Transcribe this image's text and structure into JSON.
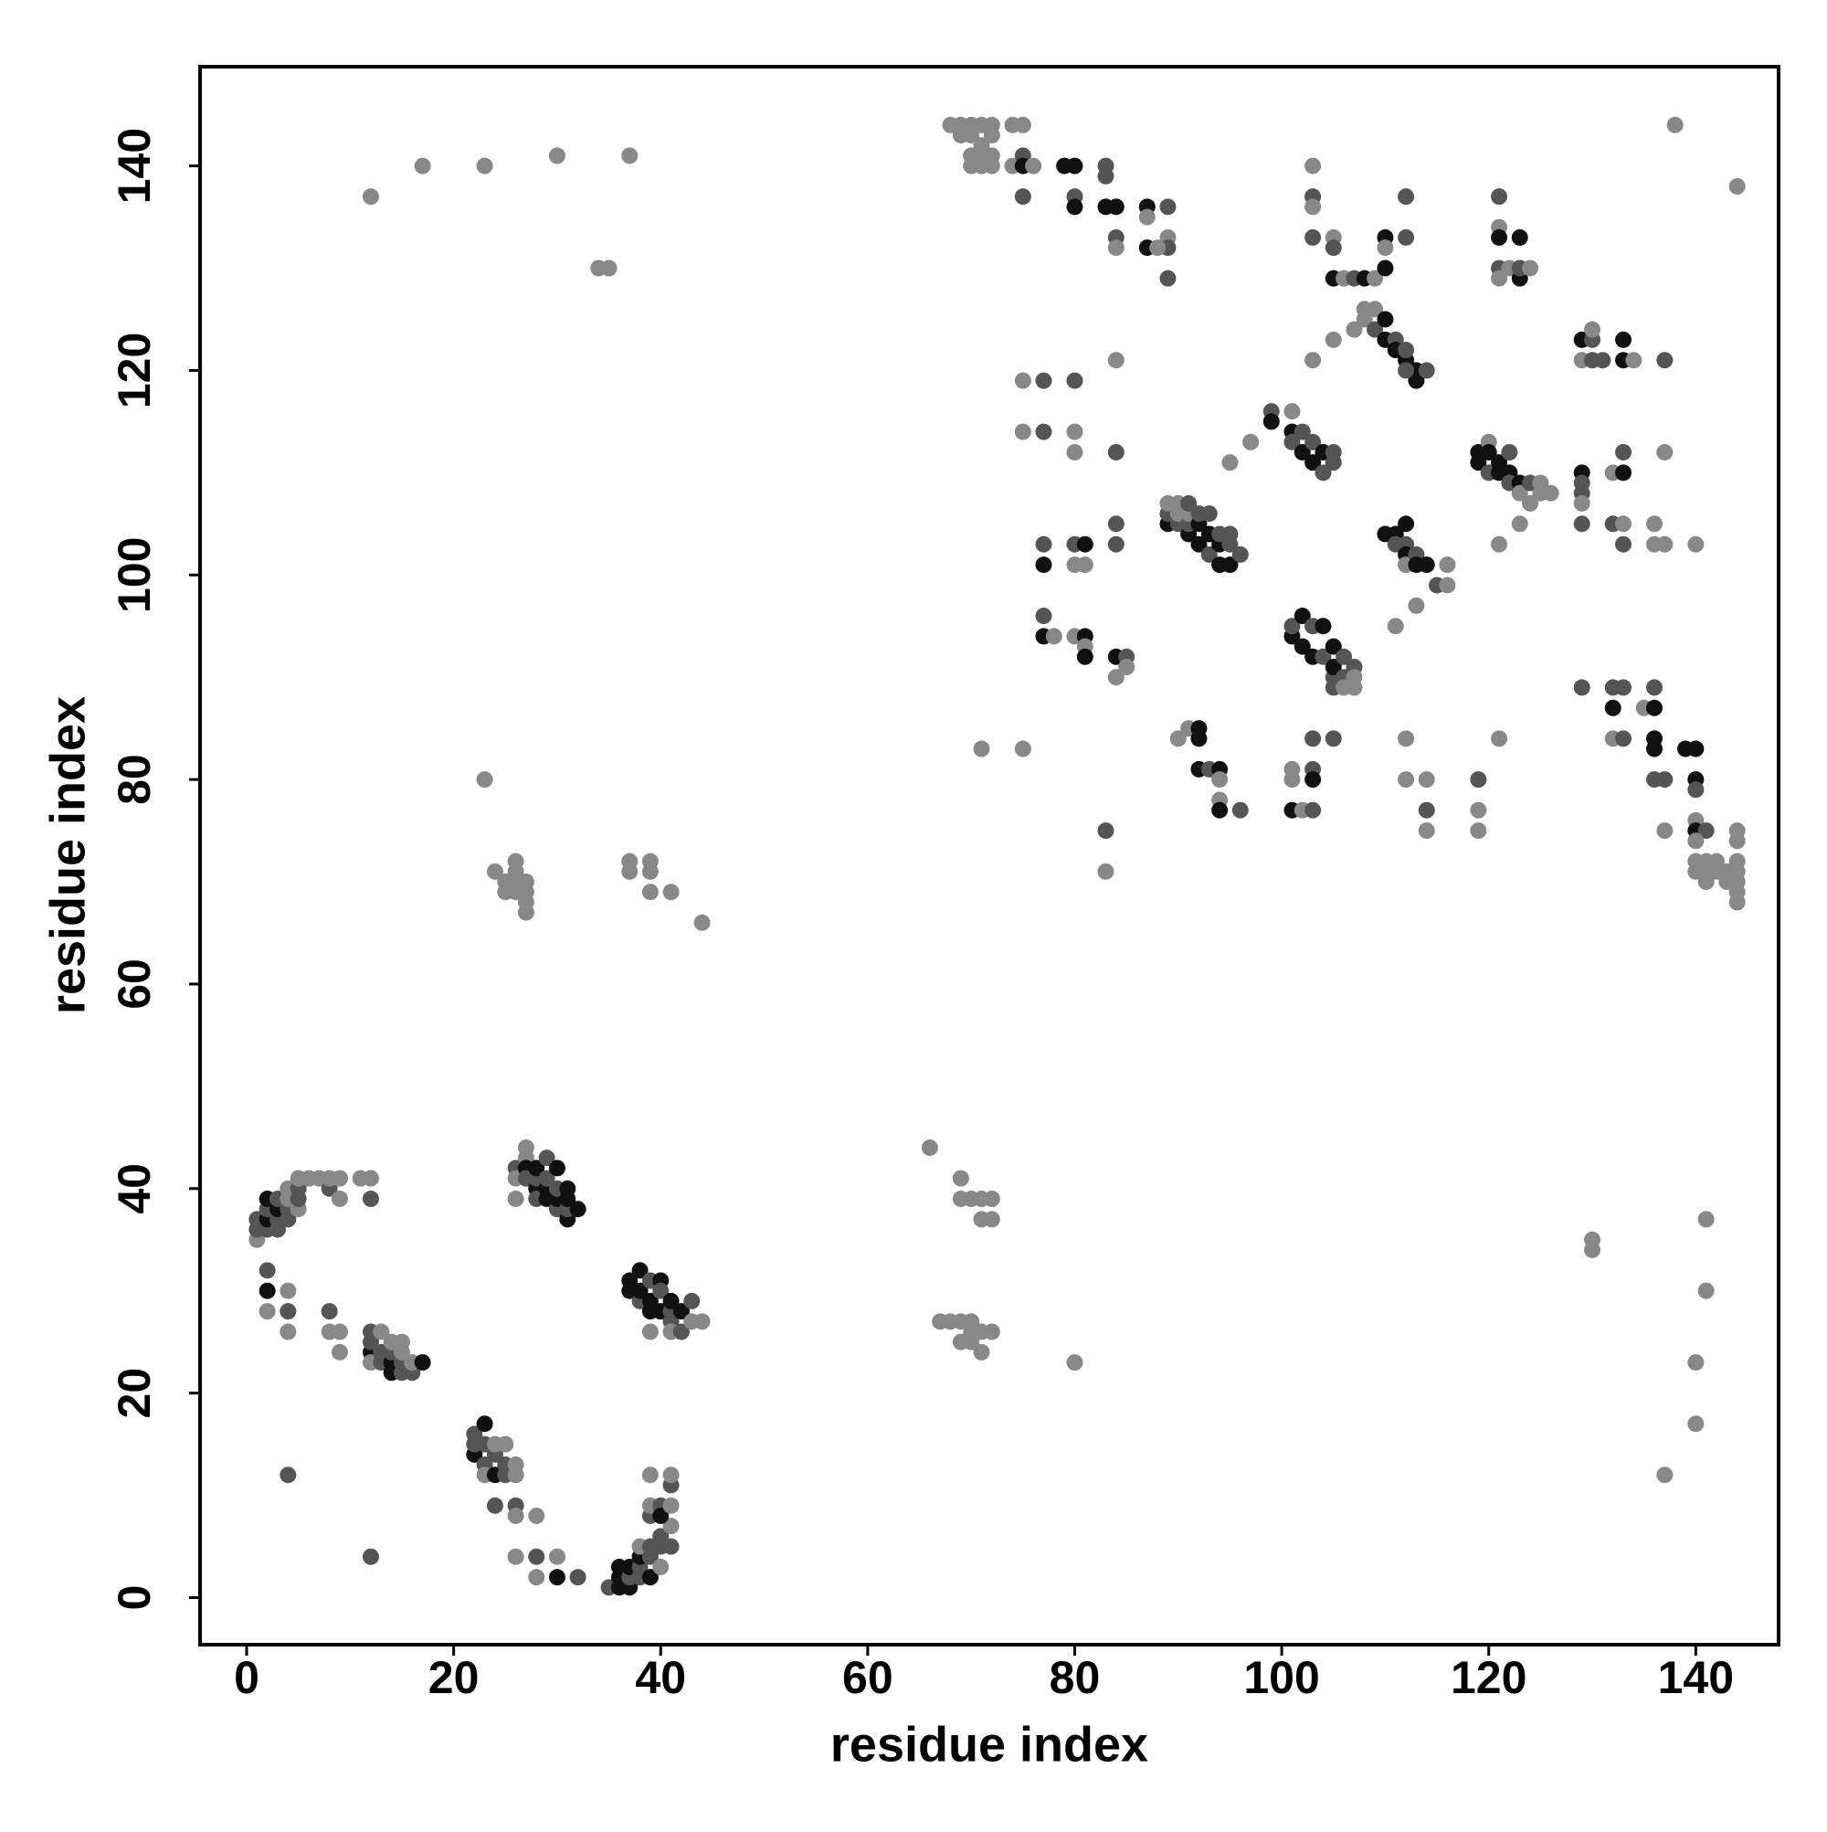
{
  "chart_data": {
    "type": "scatter",
    "xlabel": "residue index",
    "ylabel": "residue index",
    "xlim": [
      -4.5,
      148
    ],
    "ylim": [
      -4.6,
      149.7
    ],
    "xticks": [
      0,
      20,
      40,
      60,
      80,
      100,
      120,
      140
    ],
    "yticks": [
      0,
      20,
      40,
      60,
      80,
      100,
      120,
      140
    ],
    "x": [
      1,
      1,
      1,
      2,
      2,
      2,
      2,
      3,
      3,
      3,
      3,
      4,
      4,
      4,
      4,
      5,
      5,
      5,
      5,
      6,
      7,
      8,
      8,
      9,
      9,
      12,
      12,
      11,
      2,
      2,
      2,
      4,
      4,
      4,
      8,
      8,
      9,
      9,
      4,
      12,
      12,
      12,
      12,
      12,
      13,
      13,
      13,
      14,
      14,
      14,
      14,
      15,
      15,
      15,
      15,
      16,
      16,
      17,
      22,
      22,
      22,
      23,
      23,
      23,
      23,
      24,
      24,
      24,
      25,
      25,
      25,
      26,
      26,
      24,
      26,
      26,
      28,
      26,
      28,
      28,
      30,
      30,
      32,
      35,
      36,
      36,
      36,
      37,
      37,
      37,
      38,
      38,
      38,
      38,
      39,
      39,
      39,
      40,
      40,
      40,
      41,
      41,
      39,
      39,
      39,
      40,
      40,
      41,
      41,
      41,
      26,
      26,
      26,
      27,
      27,
      27,
      27,
      28,
      28,
      28,
      28,
      29,
      29,
      29,
      29,
      30,
      30,
      30,
      30,
      31,
      31,
      31,
      31,
      32,
      37,
      37,
      38,
      38,
      38,
      39,
      39,
      39,
      39,
      40,
      40,
      40,
      41,
      41,
      41,
      41,
      42,
      42,
      43,
      43,
      44,
      66,
      69,
      69,
      70,
      71,
      72,
      71,
      72,
      67,
      68,
      69,
      69,
      70,
      70,
      70,
      71,
      71,
      72,
      80,
      130,
      130,
      141,
      141,
      140,
      140,
      137,
      12,
      17,
      23,
      30,
      37,
      34,
      35,
      23,
      24,
      25,
      25,
      26,
      26,
      26,
      26,
      27,
      27,
      27,
      27,
      37,
      37,
      39,
      39,
      39,
      41,
      44,
      68,
      69,
      69,
      70,
      70,
      70,
      70,
      71,
      71,
      71,
      71,
      72,
      72,
      72,
      72,
      74,
      75,
      74,
      75,
      75,
      76,
      75,
      79,
      80,
      80,
      80,
      83,
      83,
      83,
      84,
      84,
      84,
      87,
      87,
      87,
      89,
      89,
      89,
      89,
      88,
      71,
      75,
      75,
      75,
      77,
      77,
      80,
      80,
      80,
      84,
      84,
      77,
      77,
      77,
      77,
      78,
      80,
      80,
      80,
      81,
      81,
      81,
      81,
      81,
      84,
      84,
      85,
      85,
      84,
      84,
      83,
      83,
      89,
      89,
      89,
      90,
      90,
      90,
      91,
      91,
      91,
      91,
      92,
      92,
      92,
      93,
      93,
      93,
      94,
      94,
      94,
      95,
      95,
      95,
      96,
      90,
      91,
      92,
      92,
      92,
      93,
      94,
      94,
      94,
      94,
      96,
      99,
      99,
      97,
      95,
      101,
      101,
      101,
      102,
      102,
      103,
      103,
      104,
      104,
      105,
      105,
      101,
      101,
      101,
      102,
      103,
      103,
      103,
      103,
      105,
      101,
      101,
      102,
      102,
      103,
      103,
      104,
      104,
      105,
      105,
      105,
      105,
      106,
      106,
      106,
      107,
      107,
      107,
      103,
      103,
      103,
      103,
      103,
      105,
      105,
      105,
      105,
      106,
      107,
      107,
      108,
      108,
      108,
      109,
      109,
      109,
      110,
      110,
      110,
      110,
      110,
      111,
      111,
      112,
      112,
      112,
      112,
      113,
      113,
      114,
      112,
      110,
      111,
      111,
      111,
      112,
      112,
      112,
      112,
      113,
      113,
      113,
      114,
      115,
      116,
      116,
      112,
      112,
      114,
      114,
      114,
      119,
      119,
      120,
      120,
      120,
      121,
      121,
      121,
      122,
      122,
      122,
      123,
      123,
      123,
      124,
      124,
      125,
      125,
      126,
      121,
      121,
      121,
      121,
      121,
      122,
      123,
      123,
      123,
      124,
      119,
      119,
      119,
      121,
      129,
      129,
      130,
      130,
      130,
      131,
      129,
      129,
      129,
      129,
      129,
      132,
      133,
      133,
      132,
      133,
      133,
      133,
      133,
      134,
      136,
      136,
      137,
      137,
      137,
      140,
      129,
      132,
      132,
      132,
      133,
      133,
      135,
      136,
      136,
      136,
      136,
      136,
      137,
      139,
      140,
      140,
      140,
      137,
      140,
      140,
      141,
      140,
      140,
      140,
      141,
      141,
      141,
      142,
      142,
      143,
      143,
      144,
      144,
      144,
      144,
      144,
      144,
      144,
      138,
      144
    ],
    "y": [
      35,
      36,
      37,
      36,
      37,
      38,
      39,
      36,
      37,
      38,
      39,
      37,
      38,
      39,
      40,
      38,
      39,
      40,
      41,
      41,
      41,
      40,
      41,
      39,
      41,
      39,
      41,
      41,
      32,
      30,
      28,
      30,
      28,
      26,
      28,
      26,
      26,
      24,
      12,
      4,
      24,
      25,
      26,
      23,
      24,
      26,
      23,
      22,
      23,
      24,
      25,
      22,
      23,
      24,
      25,
      22,
      23,
      23,
      14,
      15,
      16,
      13,
      15,
      17,
      12,
      12,
      14,
      15,
      12,
      13,
      15,
      13,
      12,
      9,
      9,
      8,
      8,
      4,
      4,
      2,
      4,
      2,
      2,
      1,
      1,
      2,
      3,
      1,
      2,
      3,
      2,
      3,
      4,
      5,
      2,
      4,
      5,
      3,
      5,
      6,
      5,
      7,
      8,
      9,
      12,
      9,
      8,
      9,
      11,
      12,
      42,
      41,
      39,
      44,
      43,
      42,
      41,
      40,
      41,
      42,
      39,
      39,
      40,
      41,
      43,
      38,
      39,
      42,
      40,
      37,
      38,
      39,
      40,
      38,
      30,
      31,
      29,
      30,
      32,
      28,
      29,
      31,
      26,
      28,
      31,
      30,
      27,
      28,
      29,
      26,
      26,
      28,
      29,
      27,
      27,
      44,
      41,
      39,
      39,
      39,
      39,
      37,
      37,
      27,
      27,
      25,
      27,
      26,
      25,
      27,
      24,
      26,
      26,
      23,
      35,
      34,
      37,
      30,
      23,
      17,
      12,
      137,
      140,
      140,
      141,
      141,
      130,
      130,
      80,
      71,
      70,
      69,
      72,
      71,
      70,
      69,
      70,
      69,
      68,
      67,
      72,
      71,
      72,
      71,
      69,
      69,
      66,
      144,
      143,
      144,
      144,
      143,
      141,
      140,
      144,
      142,
      141,
      140,
      144,
      143,
      141,
      140,
      144,
      144,
      140,
      141,
      140,
      140,
      137,
      140,
      140,
      137,
      136,
      140,
      139,
      136,
      136,
      133,
      132,
      136,
      135,
      132,
      136,
      133,
      132,
      129,
      132,
      83,
      83,
      119,
      114,
      119,
      114,
      119,
      114,
      112,
      121,
      112,
      103,
      101,
      96,
      94,
      94,
      94,
      103,
      101,
      103,
      101,
      94,
      93,
      92,
      92,
      90,
      92,
      91,
      105,
      103,
      75,
      71,
      105,
      106,
      107,
      105,
      106,
      107,
      104,
      105,
      106,
      107,
      103,
      105,
      106,
      102,
      104,
      106,
      101,
      103,
      104,
      101,
      103,
      104,
      102,
      84,
      85,
      85,
      84,
      81,
      81,
      81,
      80,
      78,
      77,
      77,
      116,
      115,
      113,
      111,
      116,
      114,
      113,
      112,
      114,
      113,
      111,
      112,
      110,
      112,
      111,
      81,
      80,
      77,
      77,
      84,
      81,
      80,
      77,
      84,
      94,
      95,
      93,
      96,
      92,
      95,
      92,
      95,
      90,
      89,
      93,
      91,
      90,
      92,
      89,
      91,
      90,
      89,
      140,
      137,
      136,
      133,
      121,
      133,
      132,
      129,
      123,
      129,
      124,
      129,
      129,
      126,
      125,
      126,
      124,
      129,
      125,
      123,
      130,
      133,
      132,
      123,
      122,
      121,
      122,
      133,
      137,
      120,
      119,
      120,
      120,
      104,
      104,
      103,
      95,
      105,
      103,
      102,
      101,
      102,
      101,
      97,
      101,
      99,
      101,
      99,
      84,
      80,
      80,
      77,
      75,
      112,
      111,
      113,
      112,
      110,
      111,
      110,
      103,
      112,
      110,
      109,
      109,
      108,
      105,
      109,
      107,
      108,
      109,
      108,
      137,
      134,
      133,
      130,
      129,
      130,
      133,
      129,
      130,
      130,
      80,
      77,
      75,
      84,
      123,
      121,
      123,
      124,
      121,
      121,
      110,
      109,
      108,
      107,
      105,
      110,
      110,
      112,
      105,
      105,
      103,
      123,
      121,
      121,
      105,
      103,
      121,
      112,
      103,
      103,
      89,
      89,
      87,
      84,
      89,
      84,
      87,
      89,
      87,
      84,
      83,
      80,
      80,
      83,
      83,
      80,
      79,
      75,
      76,
      75,
      75,
      74,
      72,
      71,
      72,
      71,
      70,
      72,
      71,
      71,
      70,
      75,
      74,
      72,
      71,
      70,
      69,
      68,
      144,
      138
    ],
    "colors": [
      "#888",
      "#555",
      "#555",
      "#555",
      "#111",
      "#555",
      "#111",
      "#555",
      "#555",
      "#111",
      "#555",
      "#555",
      "#555",
      "#888",
      "#888",
      "#888",
      "#555",
      "#555",
      "#888",
      "#888",
      "#888",
      "#555",
      "#888",
      "#888",
      "#888",
      "#555",
      "#888",
      "#888",
      "#555",
      "#111",
      "#888",
      "#888",
      "#555",
      "#888",
      "#555",
      "#888",
      "#888",
      "#888",
      "#555",
      "#555",
      "#111",
      "#555",
      "#555",
      "#888",
      "#555",
      "#888",
      "#555",
      "#111",
      "#111",
      "#555",
      "#888",
      "#555",
      "#555",
      "#888",
      "#888",
      "#555",
      "#888",
      "#111",
      "#111",
      "#555",
      "#555",
      "#555",
      "#555",
      "#111",
      "#888",
      "#111",
      "#555",
      "#888",
      "#555",
      "#555",
      "#888",
      "#888",
      "#888",
      "#555",
      "#555",
      "#888",
      "#888",
      "#888",
      "#555",
      "#888",
      "#888",
      "#111",
      "#555",
      "#555",
      "#111",
      "#111",
      "#111",
      "#111",
      "#555",
      "#111",
      "#555",
      "#555",
      "#111",
      "#888",
      "#111",
      "#555",
      "#555",
      "#888",
      "#555",
      "#555",
      "#555",
      "#888",
      "#555",
      "#888",
      "#888",
      "#555",
      "#111",
      "#888",
      "#555",
      "#888",
      "#555",
      "#888",
      "#888",
      "#888",
      "#888",
      "#111",
      "#555",
      "#111",
      "#555",
      "#111",
      "#555",
      "#111",
      "#111",
      "#555",
      "#555",
      "#555",
      "#111",
      "#111",
      "#555",
      "#111",
      "#555",
      "#111",
      "#111",
      "#111",
      "#111",
      "#111",
      "#555",
      "#111",
      "#111",
      "#111",
      "#111",
      "#555",
      "#888",
      "#111",
      "#111",
      "#555",
      "#555",
      "#555",
      "#111",
      "#888",
      "#555",
      "#111",
      "#555",
      "#888",
      "#888",
      "#888",
      "#888",
      "#888",
      "#888",
      "#888",
      "#888",
      "#888",
      "#888",
      "#888",
      "#888",
      "#888",
      "#888",
      "#888",
      "#888",
      "#888",
      "#888",
      "#888",
      "#888",
      "#888",
      "#888",
      "#888",
      "#888",
      "#888",
      "#888",
      "#888",
      "#888",
      "#888",
      "#888",
      "#888",
      "#888",
      "#888",
      "#888",
      "#888",
      "#888",
      "#888",
      "#888",
      "#888",
      "#888",
      "#888",
      "#888",
      "#888",
      "#888",
      "#888",
      "#888",
      "#888",
      "#888",
      "#888",
      "#888",
      "#888",
      "#888",
      "#888",
      "#888",
      "#888",
      "#888",
      "#888",
      "#888",
      "#888",
      "#888",
      "#888",
      "#888",
      "#888",
      "#888",
      "#888",
      "#888",
      "#888",
      "#888",
      "#888",
      "#888",
      "#888",
      "#888",
      "#555",
      "#111",
      "#888",
      "#555",
      "#111",
      "#111",
      "#555",
      "#111",
      "#555",
      "#555",
      "#111",
      "#111",
      "#555",
      "#888",
      "#111",
      "#888",
      "#111",
      "#555",
      "#888",
      "#555",
      "#555",
      "#888",
      "#888",
      "#888",
      "#888",
      "#888",
      "#555",
      "#555",
      "#555",
      "#888",
      "#888",
      "#888",
      "#555",
      "#555",
      "#111",
      "#555",
      "#111",
      "#888",
      "#888",
      "#555",
      "#888",
      "#111",
      "#888",
      "#111",
      "#888",
      "#111",
      "#111",
      "#888",
      "#555",
      "#888",
      "#555",
      "#555",
      "#555",
      "#888",
      "#111",
      "#555",
      "#888",
      "#555",
      "#888",
      "#888",
      "#111",
      "#555",
      "#888",
      "#555",
      "#111",
      "#111",
      "#555",
      "#555",
      "#111",
      "#555",
      "#111",
      "#111",
      "#555",
      "#111",
      "#555",
      "#555",
      "#555",
      "#888",
      "#888",
      "#111",
      "#111",
      "#111",
      "#555",
      "#111",
      "#888",
      "#888",
      "#111",
      "#555",
      "#555",
      "#111",
      "#888",
      "#888",
      "#888",
      "#111",
      "#555",
      "#111",
      "#555",
      "#555",
      "#111",
      "#111",
      "#555",
      "#555",
      "#555",
      "#888",
      "#888",
      "#111",
      "#888",
      "#555",
      "#555",
      "#111",
      "#555",
      "#555",
      "#111",
      "#555",
      "#111",
      "#111",
      "#111",
      "#555",
      "#555",
      "#111",
      "#555",
      "#555",
      "#111",
      "#111",
      "#555",
      "#555",
      "#888",
      "#555",
      "#888",
      "#888",
      "#888",
      "#555",
      "#888",
      "#555",
      "#888",
      "#888",
      "#555",
      "#111",
      "#888",
      "#888",
      "#888",
      "#555",
      "#111",
      "#888",
      "#888",
      "#888",
      "#555",
      "#888",
      "#111",
      "#111",
      "#111",
      "#111",
      "#888",
      "#555",
      "#111",
      "#111",
      "#555",
      "#555",
      "#555",
      "#111",
      "#111",
      "#555",
      "#555",
      "#111",
      "#111",
      "#555",
      "#888",
      "#111",
      "#555",
      "#111",
      "#888",
      "#555",
      "#111",
      "#888",
      "#111",
      "#555",
      "#888",
      "#888",
      "#888",
      "#888",
      "#888",
      "#555",
      "#888",
      "#111",
      "#111",
      "#888",
      "#111",
      "#555",
      "#111",
      "#111",
      "#888",
      "#555",
      "#111",
      "#555",
      "#111",
      "#888",
      "#888",
      "#555",
      "#888",
      "#888",
      "#888",
      "#888",
      "#555",
      "#888",
      "#111",
      "#555",
      "#888",
      "#888",
      "#111",
      "#111",
      "#555",
      "#888",
      "#555",
      "#888",
      "#888",
      "#888",
      "#111",
      "#888",
      "#555",
      "#888",
      "#555",
      "#555",
      "#111",
      "#555",
      "#555",
      "#888",
      "#555",
      "#888",
      "#111",
      "#555",
      "#555",
      "#888",
      "#555",
      "#111",
      "#111",
      "#888",
      "#888",
      "#888",
      "#555",
      "#888",
      "#888",
      "#888",
      "#555",
      "#555",
      "#111",
      "#888",
      "#555",
      "#555",
      "#888",
      "#555",
      "#111",
      "#111",
      "#111",
      "#555",
      "#555",
      "#111",
      "#111",
      "#111",
      "#555",
      "#888",
      "#888",
      "#111",
      "#555",
      "#888",
      "#888",
      "#888",
      "#888",
      "#888",
      "#888",
      "#888",
      "#888",
      "#888",
      "#888",
      "#888",
      "#888",
      "#888",
      "#888",
      "#888",
      "#888",
      "#888",
      "#888",
      "#888"
    ]
  }
}
